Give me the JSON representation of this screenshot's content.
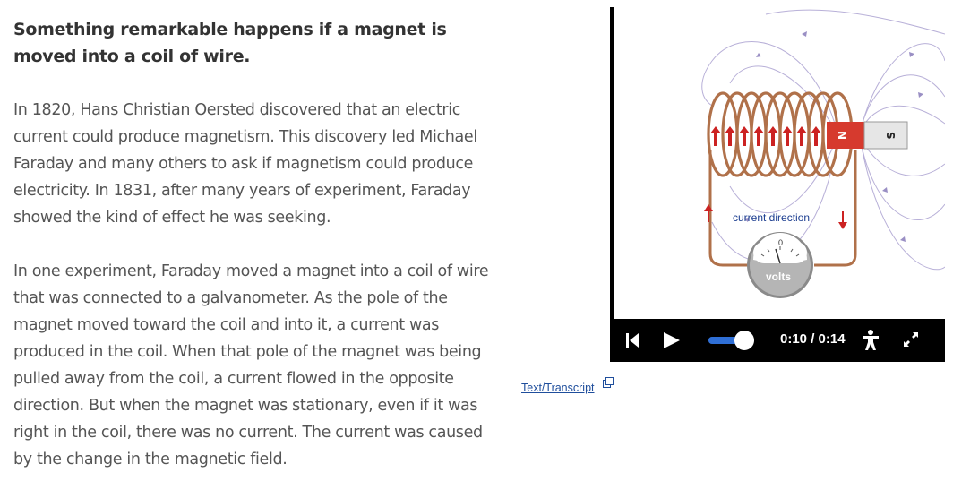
{
  "content": {
    "heading": "Something remarkable happens if a magnet is moved into a coil of wire.",
    "paragraph1": "In 1820, Hans Christian Oersted discovered that an electric current could produce magnetism. This discovery led Michael Faraday and many others to ask if magnetism could produce electricity. In 1831, after many years of experiment, Faraday showed the kind of effect he was seeking.",
    "paragraph2": "In one experiment, Faraday moved a magnet into a coil of wire that was connected to a galvanometer. As the pole of the magnet moved toward the coil and into it, a current was produced in the coil. When that pole of the magnet was being pulled away from the coil, a current flowed in the opposite direction. But when the magnet was stationary, even if it was right in the coil, there was no current. The current was caused by the change in the magnetic field."
  },
  "transcript_link": "Text/Transcript",
  "video": {
    "current_direction_label": "current direction",
    "meter_label": "volts",
    "meter_zero": "0",
    "magnet_north": "N",
    "magnet_south": "S",
    "time_display": "0:10 / 0:14",
    "volume_level": 0.8,
    "icons": [
      "skip-back-icon",
      "play-icon",
      "accessibility-icon",
      "fullscreen-icon",
      "external-link-icon"
    ]
  },
  "colors": {
    "heading": "#333333",
    "text": "#555555",
    "link": "#1f4e9c",
    "coil": "#b0714a",
    "magnet_red": "#d63a2e",
    "arrow_red": "#cc2222",
    "field_lines": "#9a8fc4",
    "label_blue": "#1a3c8f"
  }
}
